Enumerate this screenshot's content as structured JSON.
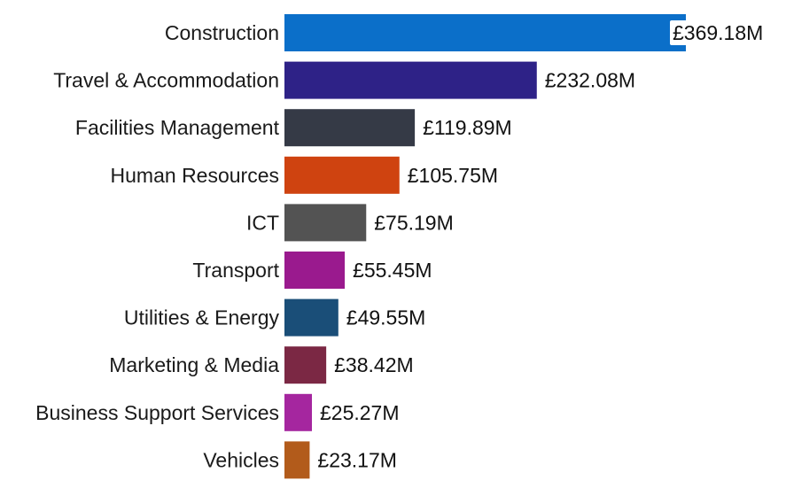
{
  "chart_data": {
    "type": "bar",
    "orientation": "horizontal",
    "title": "",
    "xlabel": "",
    "ylabel": "",
    "grid": false,
    "legend": "none",
    "xlim": [
      0,
      369.18
    ],
    "categories": [
      "Construction",
      "Travel & Accommodation",
      "Facilities Management",
      "Human Resources",
      "ICT",
      "Transport",
      "Utilities & Energy",
      "Marketing & Media",
      "Business Support Services",
      "Vehicles"
    ],
    "values": [
      369.18,
      232.08,
      119.89,
      105.75,
      75.19,
      55.45,
      49.55,
      38.42,
      25.27,
      23.17
    ],
    "data_labels": [
      "£369.18M",
      "£232.08M",
      "£119.89M",
      "£105.75M",
      "£75.19M",
      "£55.45M",
      "£49.55M",
      "£38.42M",
      "£25.27M",
      "£23.17M"
    ],
    "colors": [
      "#0b6fc9",
      "#2e2287",
      "#353a46",
      "#cf4310",
      "#535353",
      "#9a1a8e",
      "#1a4e78",
      "#7b2844",
      "#a5269f",
      "#b25b1b"
    ]
  }
}
